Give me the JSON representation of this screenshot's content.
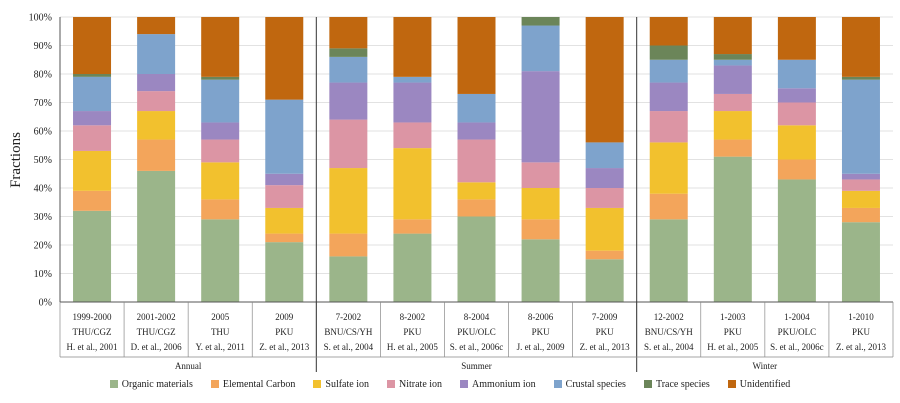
{
  "chart_data": {
    "type": "stacked-bar",
    "ylabel": "Fractions",
    "ylim": [
      0,
      100
    ],
    "yticks": [
      "0%",
      "10%",
      "20%",
      "30%",
      "40%",
      "50%",
      "60%",
      "70%",
      "80%",
      "90%",
      "100%"
    ],
    "categories": [
      {
        "period": "1999-2000",
        "site": "THU/CGZ",
        "ref": "H. et al., 2001",
        "season": "Annual"
      },
      {
        "period": "2001-2002",
        "site": "THU/CGZ",
        "ref": "D. et al., 2006",
        "season": "Annual"
      },
      {
        "period": "2005",
        "site": "THU",
        "ref": "Y. et al., 2011",
        "season": "Annual"
      },
      {
        "period": "2009",
        "site": "PKU",
        "ref": "Z. et al., 2013",
        "season": "Annual"
      },
      {
        "period": "7-2002",
        "site": "BNU/CS/YH",
        "ref": "S. et al., 2004",
        "season": "Summer"
      },
      {
        "period": "8-2002",
        "site": "PKU",
        "ref": "H. et al., 2005",
        "season": "Summer"
      },
      {
        "period": "8-2004",
        "site": "PKU/OLC",
        "ref": "S. et al., 2006c",
        "season": "Summer"
      },
      {
        "period": "8-2006",
        "site": "PKU",
        "ref": "J. et al., 2009",
        "season": "Summer"
      },
      {
        "period": "7-2009",
        "site": "PKU",
        "ref": "Z. et al., 2013",
        "season": "Summer"
      },
      {
        "period": "12-2002",
        "site": "BNU/CS/YH",
        "ref": "S. et al., 2004",
        "season": "Winter"
      },
      {
        "period": "1-2003",
        "site": "PKU",
        "ref": "H. et al., 2005",
        "season": "Winter"
      },
      {
        "period": "1-2004",
        "site": "PKU/OLC",
        "ref": "S. et al., 2006c",
        "season": "Winter"
      },
      {
        "period": "1-2010",
        "site": "PKU",
        "ref": "Z. et al., 2013",
        "season": "Winter"
      }
    ],
    "seasons": [
      {
        "label": "Annual",
        "start": 0,
        "end": 3
      },
      {
        "label": "Summer",
        "start": 4,
        "end": 8
      },
      {
        "label": "Winter",
        "start": 9,
        "end": 12
      }
    ],
    "series": [
      {
        "name": "Organic materials",
        "color": "#9bb58a",
        "values": [
          32,
          46,
          29,
          21,
          16,
          24,
          30,
          22,
          15,
          29,
          51,
          43,
          28
        ]
      },
      {
        "name": "Elemental Carbon",
        "color": "#f3a55b",
        "values": [
          7,
          11,
          7,
          3,
          8,
          5,
          6,
          7,
          3,
          9,
          6,
          7,
          5
        ]
      },
      {
        "name": "Sulfate ion",
        "color": "#f2c12e",
        "values": [
          14,
          10,
          13,
          9,
          23,
          25,
          6,
          11,
          15,
          18,
          10,
          12,
          6
        ]
      },
      {
        "name": "Nitrate ion",
        "color": "#dc95a4",
        "values": [
          9,
          7,
          8,
          8,
          17,
          9,
          15,
          9,
          7,
          11,
          6,
          8,
          4
        ]
      },
      {
        "name": "Ammonium ion",
        "color": "#9b87c1",
        "values": [
          5,
          6,
          6,
          4,
          13,
          14,
          6,
          32,
          7,
          10,
          10,
          5,
          2
        ]
      },
      {
        "name": "Crustal species",
        "color": "#7ea3cc",
        "values": [
          12,
          14,
          15,
          26,
          9,
          2,
          10,
          16,
          9,
          8,
          2,
          10,
          33
        ]
      },
      {
        "name": "Trace species",
        "color": "#6b8559",
        "values": [
          1,
          0,
          1,
          0,
          3,
          0,
          0,
          3,
          0,
          5,
          2,
          0,
          1
        ]
      },
      {
        "name": "Unidentified",
        "color": "#c0670f",
        "values": [
          20,
          6,
          21,
          29,
          11,
          21,
          27,
          0,
          44,
          10,
          13,
          15,
          21
        ]
      }
    ]
  }
}
